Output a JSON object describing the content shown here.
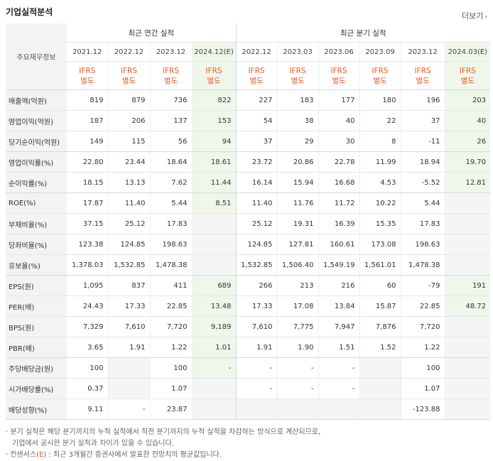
{
  "title": "기업실적분석",
  "more_label": "더보기",
  "more_arrow": "›",
  "label_header": "주요재무정보",
  "groups": {
    "annual": "최근 연간 실적",
    "quarter": "최근 분기 실적"
  },
  "periods": [
    "2021.12",
    "2022.12",
    "2023.12",
    "2024.12(E)",
    "2022.12",
    "2023.03",
    "2023.06",
    "2023.09",
    "2023.12",
    "2024.03(E)"
  ],
  "ifrs": {
    "line1": "IFRS",
    "line2": "별도"
  },
  "rows": [
    {
      "label": "매출액(억원)",
      "values": [
        "819",
        "879",
        "736",
        "822",
        "227",
        "183",
        "177",
        "180",
        "196",
        "203"
      ]
    },
    {
      "label": "영업이익(억원)",
      "values": [
        "187",
        "206",
        "137",
        "153",
        "54",
        "38",
        "40",
        "22",
        "37",
        "40"
      ]
    },
    {
      "label": "당기순이익(억원)",
      "values": [
        "149",
        "115",
        "56",
        "94",
        "37",
        "29",
        "30",
        "8",
        "-11",
        "26"
      ]
    },
    {
      "label": "영업이익률(%)",
      "values": [
        "22.80",
        "23.44",
        "18.64",
        "18.61",
        "23.72",
        "20.86",
        "22.78",
        "11.99",
        "18.94",
        "19.70"
      ]
    },
    {
      "label": "순이익률(%)",
      "values": [
        "18.15",
        "13.13",
        "7.62",
        "11.44",
        "16.14",
        "15.94",
        "16.68",
        "4.53",
        "-5.52",
        "12.81"
      ]
    },
    {
      "label": "ROE(%)",
      "values": [
        "17.87",
        "11.40",
        "5.44",
        "8.51",
        "11.40",
        "11.76",
        "11.72",
        "10.22",
        "5.44",
        ""
      ]
    },
    {
      "label": "부채비율(%)",
      "values": [
        "37.15",
        "25.12",
        "17.83",
        "",
        "25.12",
        "19.31",
        "16.39",
        "15.35",
        "17.83",
        ""
      ]
    },
    {
      "label": "당좌비율(%)",
      "values": [
        "123.38",
        "124.85",
        "198.63",
        "",
        "124.85",
        "127.81",
        "160.61",
        "173.08",
        "198.63",
        ""
      ]
    },
    {
      "label": "유보율(%)",
      "values": [
        "1,378.03",
        "1,532.85",
        "1,478.38",
        "",
        "1,532.85",
        "1,506.40",
        "1,549.19",
        "1,561.01",
        "1,478.38",
        ""
      ]
    },
    {
      "label": "EPS(원)",
      "values": [
        "1,095",
        "837",
        "411",
        "689",
        "266",
        "213",
        "216",
        "60",
        "-79",
        "191"
      ]
    },
    {
      "label": "PER(배)",
      "values": [
        "24.43",
        "17.33",
        "22.85",
        "13.48",
        "17.33",
        "17.08",
        "13.84",
        "15.87",
        "22.85",
        "48.72"
      ]
    },
    {
      "label": "BPS(원)",
      "values": [
        "7,329",
        "7,610",
        "7,720",
        "9,189",
        "7,610",
        "7,775",
        "7,947",
        "7,876",
        "7,720",
        ""
      ]
    },
    {
      "label": "PBR(배)",
      "values": [
        "3.65",
        "1.91",
        "1.22",
        "1.01",
        "1.91",
        "1.90",
        "1.51",
        "1.52",
        "1.22",
        ""
      ]
    },
    {
      "label": "주당배당금(원)",
      "values": [
        "100",
        "",
        "100",
        "-",
        "-",
        "-",
        "-",
        "",
        "100",
        ""
      ]
    },
    {
      "label": "시가배당률(%)",
      "values": [
        "0.37",
        "",
        "1.07",
        "",
        "-",
        "-",
        "-",
        "",
        "1.07",
        ""
      ]
    },
    {
      "label": "배당성향(%)",
      "values": [
        "9.11",
        "-",
        "23.87",
        "",
        "",
        "",
        "",
        "",
        "-123.88",
        ""
      ]
    }
  ],
  "notes": {
    "n1a": "· 분기 실적은 해당 분기까지의 누적 실적에서 직전 분기까지의 누적 실적을 차감하는 방식으로 계산되므로,",
    "n1b": "기업에서 공시한 분기 실적과 차이가 있을 수 있습니다.",
    "n2a": "· 컨센서스(",
    "n2e": "E",
    "n2b": ") : 최근 3개월간 증권사에서 발표한 전망치의 평균값입니다."
  }
}
